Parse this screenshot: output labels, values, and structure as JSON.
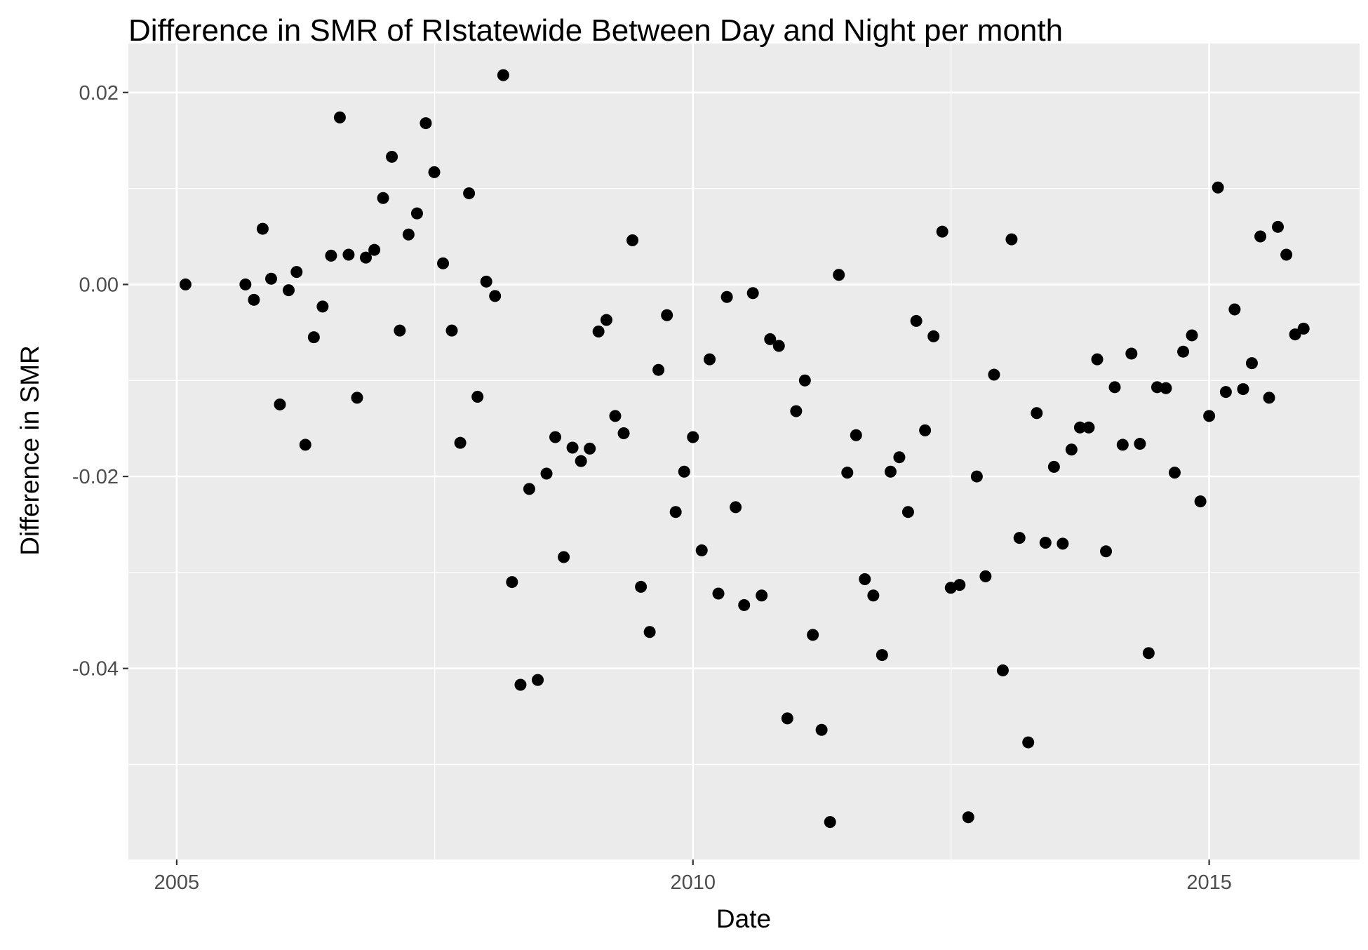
{
  "chart_data": {
    "type": "scatter",
    "title": "Difference in SMR of RIstatewide Between Day and Night per month",
    "xlabel": "Date",
    "ylabel": "Difference in SMR",
    "x_ticks": [
      "2005",
      "2010",
      "2015"
    ],
    "y_ticks": [
      "0.02",
      "0.00",
      "-0.02",
      "-0.04"
    ],
    "xlim": [
      "2004-07-14",
      "2016-06-16"
    ],
    "ylim": [
      -0.0599,
      0.0251
    ],
    "grid": true,
    "legend": "none",
    "colors": {
      "background": "#ebebeb",
      "grid": "#ffffff",
      "point": "#000000",
      "axis_text": "#4d4d4d",
      "title_text": "#000000"
    },
    "points": [
      {
        "x": "2005-02-01",
        "y": 0.0
      },
      {
        "x": "2005-09-01",
        "y": 0.0
      },
      {
        "x": "2005-10-01",
        "y": -0.0016
      },
      {
        "x": "2005-11-01",
        "y": 0.0058
      },
      {
        "x": "2005-12-01",
        "y": 0.0006
      },
      {
        "x": "2006-01-01",
        "y": -0.0125
      },
      {
        "x": "2006-02-01",
        "y": -0.0006
      },
      {
        "x": "2006-03-01",
        "y": 0.0013
      },
      {
        "x": "2006-04-01",
        "y": -0.0167
      },
      {
        "x": "2006-05-01",
        "y": -0.0055
      },
      {
        "x": "2006-06-01",
        "y": -0.0023
      },
      {
        "x": "2006-07-01",
        "y": 0.003
      },
      {
        "x": "2006-08-01",
        "y": 0.0174
      },
      {
        "x": "2006-09-01",
        "y": 0.0031
      },
      {
        "x": "2006-10-01",
        "y": -0.0118
      },
      {
        "x": "2006-11-01",
        "y": 0.0028
      },
      {
        "x": "2006-12-01",
        "y": 0.0036
      },
      {
        "x": "2007-01-01",
        "y": 0.009
      },
      {
        "x": "2007-02-01",
        "y": 0.0133
      },
      {
        "x": "2007-03-01",
        "y": -0.0048
      },
      {
        "x": "2007-04-01",
        "y": 0.0052
      },
      {
        "x": "2007-05-01",
        "y": 0.0074
      },
      {
        "x": "2007-06-01",
        "y": 0.0168
      },
      {
        "x": "2007-07-01",
        "y": 0.0117
      },
      {
        "x": "2007-08-01",
        "y": 0.0022
      },
      {
        "x": "2007-09-01",
        "y": -0.0048
      },
      {
        "x": "2007-10-01",
        "y": -0.0165
      },
      {
        "x": "2007-11-01",
        "y": 0.0095
      },
      {
        "x": "2007-12-01",
        "y": -0.0117
      },
      {
        "x": "2008-01-01",
        "y": 0.0003
      },
      {
        "x": "2008-02-01",
        "y": -0.0012
      },
      {
        "x": "2008-03-01",
        "y": 0.0218
      },
      {
        "x": "2008-04-01",
        "y": -0.031
      },
      {
        "x": "2008-05-01",
        "y": -0.0417
      },
      {
        "x": "2008-06-01",
        "y": -0.0213
      },
      {
        "x": "2008-07-01",
        "y": -0.0412
      },
      {
        "x": "2008-08-01",
        "y": -0.0197
      },
      {
        "x": "2008-09-01",
        "y": -0.0159
      },
      {
        "x": "2008-10-01",
        "y": -0.0284
      },
      {
        "x": "2008-11-01",
        "y": -0.017
      },
      {
        "x": "2008-12-01",
        "y": -0.0184
      },
      {
        "x": "2009-01-01",
        "y": -0.0171
      },
      {
        "x": "2009-02-01",
        "y": -0.0049
      },
      {
        "x": "2009-03-01",
        "y": -0.0037
      },
      {
        "x": "2009-04-01",
        "y": -0.0137
      },
      {
        "x": "2009-05-01",
        "y": -0.0155
      },
      {
        "x": "2009-06-01",
        "y": 0.0046
      },
      {
        "x": "2009-07-01",
        "y": -0.0315
      },
      {
        "x": "2009-08-01",
        "y": -0.0362
      },
      {
        "x": "2009-09-01",
        "y": -0.0089
      },
      {
        "x": "2009-10-01",
        "y": -0.0032
      },
      {
        "x": "2009-11-01",
        "y": -0.0237
      },
      {
        "x": "2009-12-01",
        "y": -0.0195
      },
      {
        "x": "2010-01-01",
        "y": -0.0159
      },
      {
        "x": "2010-02-01",
        "y": -0.0277
      },
      {
        "x": "2010-03-01",
        "y": -0.0078
      },
      {
        "x": "2010-04-01",
        "y": -0.0322
      },
      {
        "x": "2010-05-01",
        "y": -0.0013
      },
      {
        "x": "2010-06-01",
        "y": -0.0232
      },
      {
        "x": "2010-07-01",
        "y": -0.0334
      },
      {
        "x": "2010-08-01",
        "y": -0.0009
      },
      {
        "x": "2010-09-01",
        "y": -0.0324
      },
      {
        "x": "2010-10-01",
        "y": -0.0057
      },
      {
        "x": "2010-11-01",
        "y": -0.0064
      },
      {
        "x": "2010-12-01",
        "y": -0.0452
      },
      {
        "x": "2011-01-01",
        "y": -0.0132
      },
      {
        "x": "2011-02-01",
        "y": -0.01
      },
      {
        "x": "2011-03-01",
        "y": -0.0365
      },
      {
        "x": "2011-04-01",
        "y": -0.0464
      },
      {
        "x": "2011-05-01",
        "y": -0.056
      },
      {
        "x": "2011-06-01",
        "y": 0.001
      },
      {
        "x": "2011-07-01",
        "y": -0.0196
      },
      {
        "x": "2011-08-01",
        "y": -0.0157
      },
      {
        "x": "2011-09-01",
        "y": -0.0307
      },
      {
        "x": "2011-10-01",
        "y": -0.0324
      },
      {
        "x": "2011-11-01",
        "y": -0.0386
      },
      {
        "x": "2011-12-01",
        "y": -0.0195
      },
      {
        "x": "2012-01-01",
        "y": -0.018
      },
      {
        "x": "2012-02-01",
        "y": -0.0237
      },
      {
        "x": "2012-03-01",
        "y": -0.0038
      },
      {
        "x": "2012-04-01",
        "y": -0.0152
      },
      {
        "x": "2012-05-01",
        "y": -0.0054
      },
      {
        "x": "2012-06-01",
        "y": 0.0055
      },
      {
        "x": "2012-07-01",
        "y": -0.0316
      },
      {
        "x": "2012-08-01",
        "y": -0.0313
      },
      {
        "x": "2012-09-01",
        "y": -0.0555
      },
      {
        "x": "2012-10-01",
        "y": -0.02
      },
      {
        "x": "2012-11-01",
        "y": -0.0304
      },
      {
        "x": "2012-12-01",
        "y": -0.0094
      },
      {
        "x": "2013-01-01",
        "y": -0.0402
      },
      {
        "x": "2013-02-01",
        "y": 0.0047
      },
      {
        "x": "2013-03-01",
        "y": -0.0264
      },
      {
        "x": "2013-04-01",
        "y": -0.0477
      },
      {
        "x": "2013-05-01",
        "y": -0.0134
      },
      {
        "x": "2013-06-01",
        "y": -0.0269
      },
      {
        "x": "2013-07-01",
        "y": -0.019
      },
      {
        "x": "2013-08-01",
        "y": -0.027
      },
      {
        "x": "2013-09-01",
        "y": -0.0172
      },
      {
        "x": "2013-10-01",
        "y": -0.0149
      },
      {
        "x": "2013-11-01",
        "y": -0.0149
      },
      {
        "x": "2013-12-01",
        "y": -0.0078
      },
      {
        "x": "2014-01-01",
        "y": -0.0278
      },
      {
        "x": "2014-02-01",
        "y": -0.0107
      },
      {
        "x": "2014-03-01",
        "y": -0.0167
      },
      {
        "x": "2014-04-01",
        "y": -0.0072
      },
      {
        "x": "2014-05-01",
        "y": -0.0166
      },
      {
        "x": "2014-06-01",
        "y": -0.0384
      },
      {
        "x": "2014-07-01",
        "y": -0.0107
      },
      {
        "x": "2014-08-01",
        "y": -0.0108
      },
      {
        "x": "2014-09-01",
        "y": -0.0196
      },
      {
        "x": "2014-10-01",
        "y": -0.007
      },
      {
        "x": "2014-11-01",
        "y": -0.0053
      },
      {
        "x": "2014-12-01",
        "y": -0.0226
      },
      {
        "x": "2015-01-01",
        "y": -0.0137
      },
      {
        "x": "2015-02-01",
        "y": 0.0101
      },
      {
        "x": "2015-03-01",
        "y": -0.0112
      },
      {
        "x": "2015-04-01",
        "y": -0.0026
      },
      {
        "x": "2015-05-01",
        "y": -0.0109
      },
      {
        "x": "2015-06-01",
        "y": -0.0082
      },
      {
        "x": "2015-07-01",
        "y": 0.005
      },
      {
        "x": "2015-08-01",
        "y": -0.0118
      },
      {
        "x": "2015-09-01",
        "y": 0.006
      },
      {
        "x": "2015-10-01",
        "y": 0.0031
      },
      {
        "x": "2015-11-01",
        "y": -0.0052
      },
      {
        "x": "2015-12-01",
        "y": -0.0046
      }
    ]
  }
}
